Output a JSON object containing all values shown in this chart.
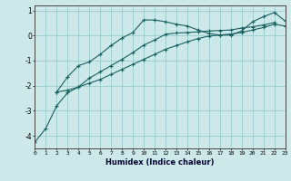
{
  "xlabel": "Humidex (Indice chaleur)",
  "x": [
    0,
    1,
    2,
    3,
    4,
    5,
    6,
    7,
    8,
    9,
    10,
    11,
    12,
    13,
    14,
    15,
    16,
    17,
    18,
    19,
    20,
    21,
    22,
    23
  ],
  "line1": [
    null,
    null,
    -2.25,
    -1.65,
    -1.2,
    -1.05,
    -0.75,
    -0.4,
    -0.1,
    0.12,
    0.62,
    0.62,
    0.55,
    0.45,
    0.38,
    0.22,
    0.08,
    0.02,
    0.02,
    0.18,
    0.55,
    0.75,
    0.92,
    0.58
  ],
  "line2": [
    -4.25,
    -3.7,
    -2.8,
    -2.28,
    -2.05,
    -1.7,
    -1.45,
    -1.2,
    -0.95,
    -0.68,
    -0.38,
    -0.18,
    0.05,
    0.1,
    0.12,
    0.15,
    0.18,
    0.2,
    0.22,
    0.3,
    0.35,
    0.42,
    0.52,
    null
  ],
  "line3": [
    null,
    null,
    -2.25,
    -2.18,
    -2.05,
    -1.9,
    -1.75,
    -1.55,
    -1.35,
    -1.15,
    -0.95,
    -0.75,
    -0.55,
    -0.4,
    -0.25,
    -0.12,
    -0.02,
    0.02,
    0.06,
    0.12,
    0.22,
    0.32,
    0.45,
    0.38
  ],
  "bg_color": "#cce8e8",
  "grid_color": "#99cccc",
  "line_color": "#1a6060",
  "xlim": [
    0,
    23
  ],
  "ylim": [
    -4.5,
    1.2
  ],
  "yticks": [
    -4,
    -3,
    -2,
    -1,
    0,
    1
  ],
  "xticks": [
    0,
    1,
    2,
    3,
    4,
    5,
    6,
    7,
    8,
    9,
    10,
    11,
    12,
    13,
    14,
    15,
    16,
    17,
    18,
    19,
    20,
    21,
    22,
    23
  ]
}
